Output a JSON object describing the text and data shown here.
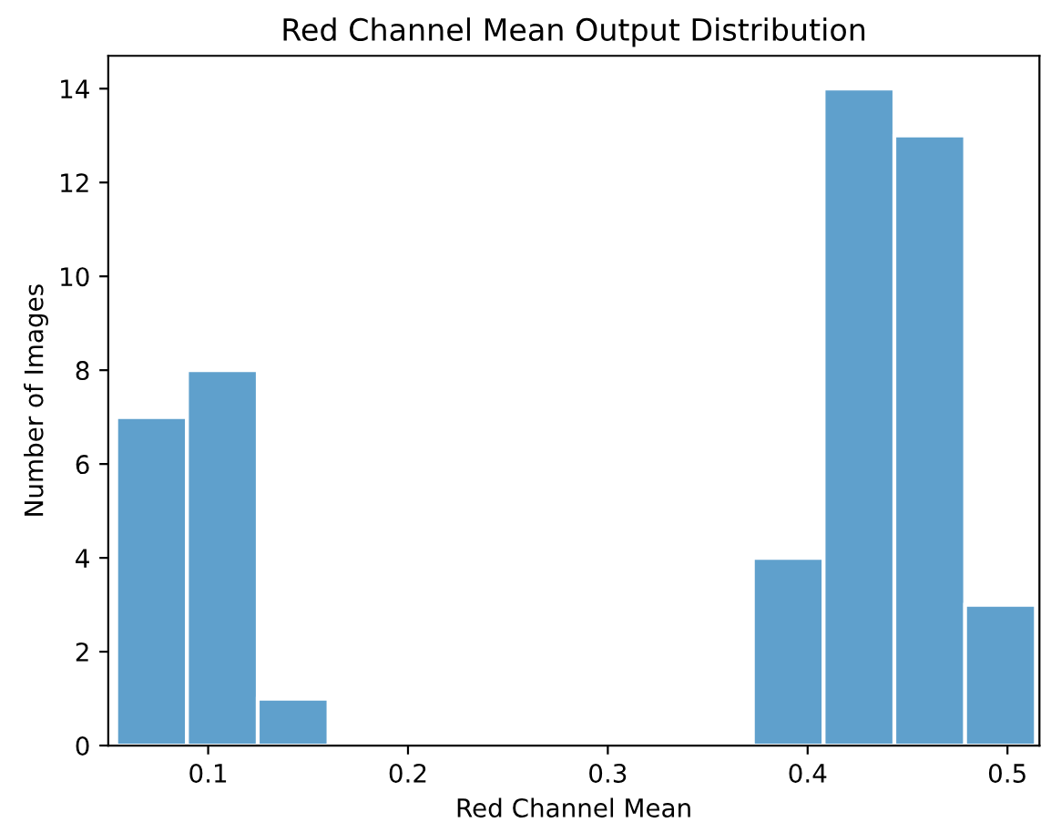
{
  "chart_data": {
    "type": "histogram",
    "title": "Red Channel Mean Output Distribution",
    "xlabel": "Red Channel Mean",
    "ylabel": "Number of Images",
    "bins": [
      0.054,
      0.0894,
      0.1248,
      0.1602,
      0.1956,
      0.231,
      0.2664,
      0.3018,
      0.3372,
      0.3726,
      0.408,
      0.4434,
      0.4788,
      0.5142
    ],
    "values": [
      7,
      8,
      1,
      0,
      0,
      0,
      0,
      0,
      0,
      4,
      14,
      13,
      3
    ],
    "color": "#5fa0cc",
    "xlim": [
      0.05,
      0.516
    ],
    "xticks": [
      0.1,
      0.2,
      0.3,
      0.4,
      0.5
    ],
    "ylim": [
      0,
      14.7
    ],
    "yticks": [
      0,
      2,
      4,
      6,
      8,
      10,
      12,
      14
    ],
    "grid": false
  }
}
